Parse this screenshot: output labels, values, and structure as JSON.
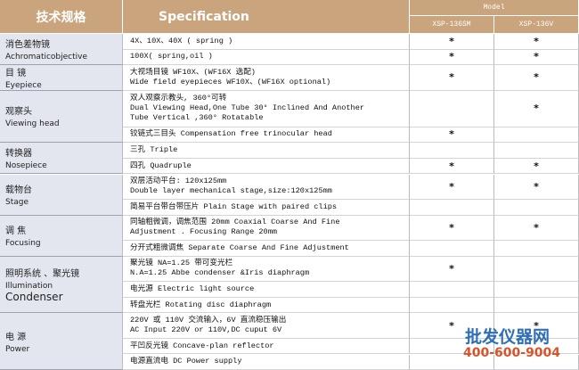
{
  "header": {
    "title_cn": "技术规格",
    "title_en": "Specification",
    "model": "Model",
    "models": [
      "XSP-136SM",
      "XSP-136V"
    ]
  },
  "groups": [
    {
      "label": [
        "消色差物镜",
        "Achromaticobjective"
      ],
      "rows": [
        {
          "text": [
            "4X、10X、40X ( spring )"
          ],
          "marks": [
            "*",
            "*"
          ]
        },
        {
          "text": [
            "100X( spring,oil )"
          ],
          "marks": [
            "*",
            "*"
          ]
        }
      ]
    },
    {
      "label": [
        "目  镜",
        "Eyepiece"
      ],
      "rows": [
        {
          "text": [
            "大视场目镜 WF10X、(WF16X 选配)",
            "Wide field eyepieces WF10X、(WF16X  optional)"
          ],
          "marks": [
            "*",
            "*"
          ]
        }
      ]
    },
    {
      "label": [
        "观察头",
        "Viewing head"
      ],
      "rows": [
        {
          "text": [
            "双人观察示教头, 360°可转",
            "Dual Viewing Head,One Tube 30°  Inclined And Another",
            "Tube Vertical ,360°  Rotatable"
          ],
          "marks": [
            null,
            "*"
          ]
        },
        {
          "text": [
            "铰链式三目头 Compensation free trinocular head"
          ],
          "marks": [
            "*",
            null
          ]
        }
      ]
    },
    {
      "label": [
        "转换器",
        "Nosepiece"
      ],
      "rows": [
        {
          "text": [
            "三孔    Triple"
          ],
          "marks": [
            null,
            null
          ]
        },
        {
          "text": [
            "四孔    Quadruple"
          ],
          "marks": [
            "*",
            "*"
          ]
        }
      ]
    },
    {
      "label": [
        "载物台",
        "Stage"
      ],
      "rows": [
        {
          "text": [
            "双层活动平台: 120x125mm",
            "Double layer mechanical stage,size:120x125mm"
          ],
          "marks": [
            "*",
            "*"
          ]
        },
        {
          "text": [
            "简易平台带台带压片 Plain Stage with paired clips"
          ],
          "marks": [
            null,
            null
          ]
        }
      ]
    },
    {
      "label": [
        "调  焦",
        "Focusing"
      ],
      "rows": [
        {
          "text": [
            "同轴粗微调，调焦范围 20mm    Coaxial Coarse And Fine",
            "Adjustment  . Focusing Range 20mm"
          ],
          "marks": [
            "*",
            "*"
          ]
        },
        {
          "text": [
            "分开式粗微调焦 Separate Coarse And Fine Adjustment"
          ],
          "marks": [
            null,
            null
          ]
        }
      ]
    },
    {
      "label": [
        "照明系统 、聚光镜",
        "Illumination",
        "Condenser"
      ],
      "rows": [
        {
          "text": [
            "聚光镜 NA=1.25 带可变光栏",
            "N.A=1.25 Abbe condenser &Iris diaphragm"
          ],
          "marks": [
            "*",
            null
          ]
        },
        {
          "text": [
            "电光源        Electric light source"
          ],
          "marks": [
            null,
            null
          ]
        },
        {
          "text": [
            "转盘光栏      Rotating disc diaphragm"
          ],
          "marks": [
            null,
            null
          ]
        }
      ]
    },
    {
      "label": [
        "电  源",
        "Power"
      ],
      "rows": [
        {
          "text": [
            "220V  或 110V 交流输入，6V 直流稳压输出",
            "AC Input 220V or 110V,DC cuput 6V"
          ],
          "marks": [
            "*",
            "*"
          ]
        },
        {
          "text": [
            "平凹反光镜    Concave-plan reflector"
          ],
          "marks": [
            null,
            null
          ]
        },
        {
          "text": [
            "电源直流电    DC Power supply"
          ],
          "marks": [
            null,
            null
          ]
        }
      ]
    }
  ],
  "watermark": {
    "name": "批发仪器网",
    "phone": "400-600-9004"
  }
}
